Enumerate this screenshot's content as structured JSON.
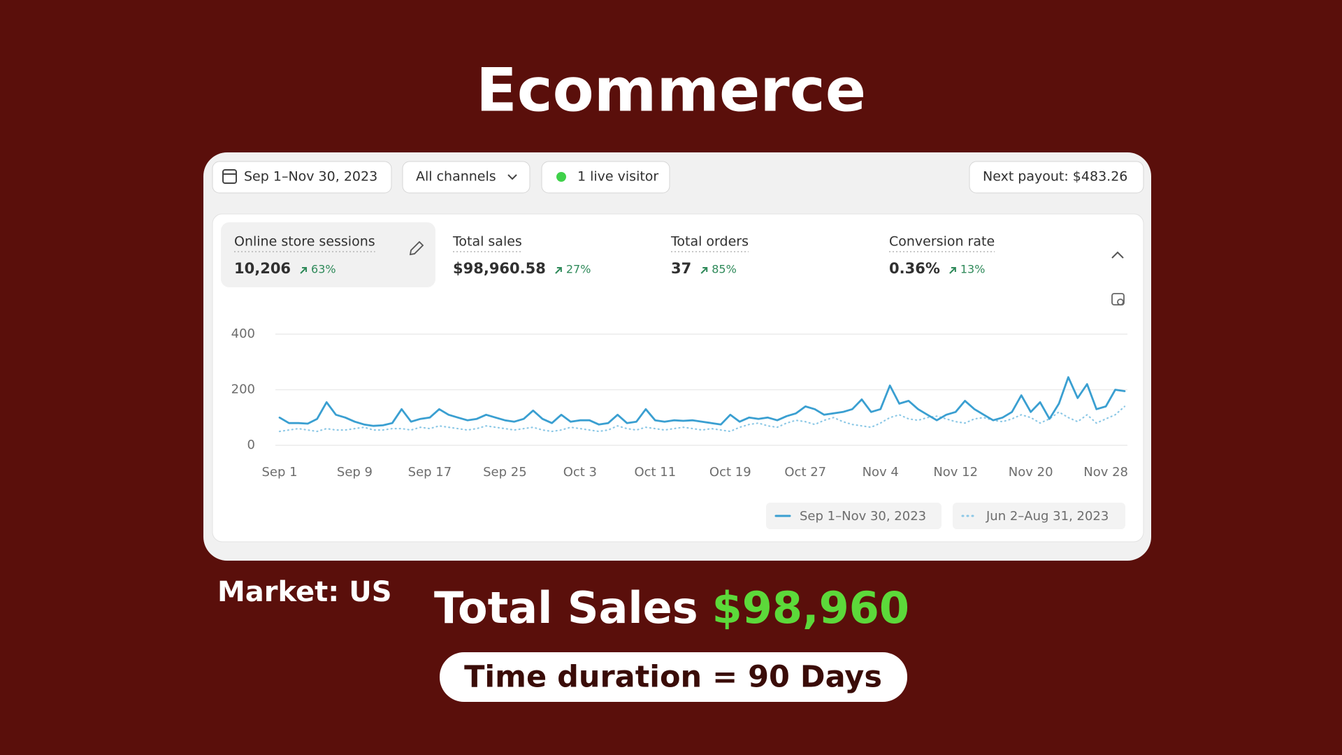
{
  "header": {
    "title": "Ecommerce"
  },
  "toolbar": {
    "date_range": "Sep 1–Nov 30, 2023",
    "channels": "All channels",
    "live_visitors": "1 live visitor",
    "next_payout": "Next payout: $483.26"
  },
  "metrics": [
    {
      "label": "Online store sessions",
      "value": "10,206",
      "change": "63%"
    },
    {
      "label": "Total sales",
      "value": "$98,960.58",
      "change": "27%"
    },
    {
      "label": "Total orders",
      "value": "37",
      "change": "85%"
    },
    {
      "label": "Conversion rate",
      "value": "0.36%",
      "change": "13%"
    }
  ],
  "chart_data": {
    "type": "line",
    "categories": [
      "Sep 1",
      null,
      null,
      null,
      null,
      null,
      null,
      null,
      "Sep 9",
      null,
      null,
      null,
      null,
      null,
      null,
      null,
      "Sep 17",
      null,
      null,
      null,
      null,
      null,
      null,
      null,
      "Sep 25",
      null,
      null,
      null,
      null,
      null,
      null,
      null,
      "Oct 3",
      null,
      null,
      null,
      null,
      null,
      null,
      null,
      "Oct 11",
      null,
      null,
      null,
      null,
      null,
      null,
      null,
      "Oct 19",
      null,
      null,
      null,
      null,
      null,
      null,
      null,
      "Oct 27",
      null,
      null,
      null,
      null,
      null,
      null,
      null,
      "Nov 4",
      null,
      null,
      null,
      null,
      null,
      null,
      null,
      "Nov 12",
      null,
      null,
      null,
      null,
      null,
      null,
      null,
      "Nov 20",
      null,
      null,
      null,
      null,
      null,
      null,
      null,
      "Nov 28",
      null,
      null
    ],
    "series": [
      {
        "name": "Sep 1–Nov 30, 2023",
        "color": "#3a9fd1",
        "line_style": "solid",
        "values": [
          100,
          80,
          80,
          78,
          95,
          155,
          110,
          100,
          85,
          75,
          70,
          72,
          80,
          130,
          85,
          95,
          100,
          130,
          110,
          100,
          90,
          95,
          110,
          100,
          90,
          85,
          95,
          125,
          95,
          80,
          110,
          85,
          90,
          90,
          75,
          80,
          110,
          80,
          85,
          130,
          90,
          85,
          90,
          88,
          90,
          85,
          80,
          75,
          110,
          85,
          100,
          95,
          100,
          90,
          105,
          115,
          140,
          130,
          110,
          115,
          120,
          130,
          165,
          120,
          130,
          215,
          150,
          160,
          130,
          110,
          90,
          110,
          120,
          160,
          130,
          110,
          90,
          100,
          120,
          180,
          120,
          155,
          95,
          150,
          245,
          170,
          220,
          130,
          140,
          200,
          195
        ]
      },
      {
        "name": "Jun 2–Aug 31, 2023",
        "color": "#8cc8e6",
        "line_style": "dotted",
        "values": [
          50,
          55,
          60,
          55,
          50,
          60,
          55,
          55,
          60,
          65,
          55,
          55,
          60,
          60,
          55,
          65,
          60,
          70,
          65,
          60,
          55,
          60,
          70,
          65,
          60,
          55,
          60,
          65,
          55,
          50,
          55,
          65,
          60,
          55,
          50,
          55,
          70,
          60,
          55,
          65,
          60,
          55,
          60,
          65,
          60,
          55,
          60,
          55,
          50,
          65,
          75,
          80,
          70,
          65,
          80,
          90,
          85,
          75,
          90,
          100,
          85,
          75,
          70,
          65,
          80,
          100,
          110,
          95,
          90,
          100,
          105,
          95,
          85,
          80,
          95,
          100,
          90,
          85,
          95,
          110,
          100,
          80,
          95,
          120,
          100,
          85,
          110,
          80,
          95,
          110,
          140
        ]
      }
    ],
    "ylim": [
      0,
      400
    ],
    "yticks": [
      0,
      200,
      400
    ],
    "grid": true
  },
  "footer": {
    "market": "Market: US",
    "total_sales_label": "Total Sales",
    "total_sales_value": "$98,960",
    "duration": "Time duration = 90 Days"
  }
}
